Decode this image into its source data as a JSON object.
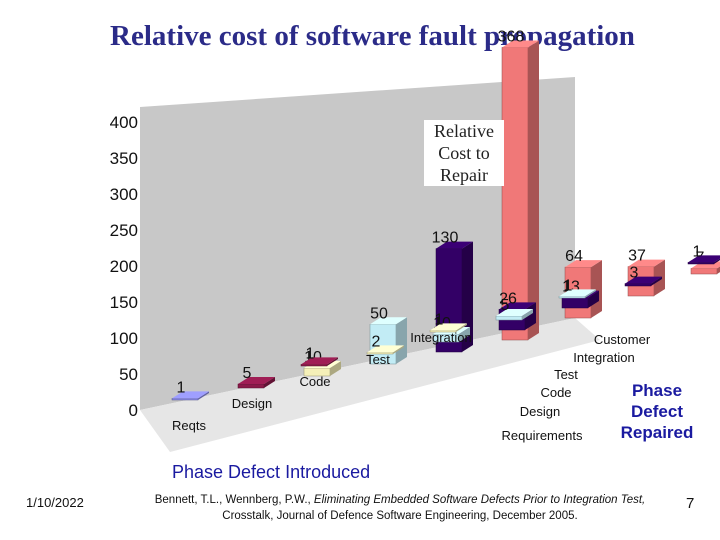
{
  "slide": {
    "title": "Relative cost of software fault propagation",
    "date": "1/10/2022",
    "page_number": "7",
    "citation": {
      "prefix": "Bennett, T.L., Wennberg, P.W., ",
      "italic": "Eliminating Embedded Software Defects Prior to Integration Test,",
      "suffix": "Crosstalk, Journal of Defence Software Engineering, December 2005."
    }
  },
  "chart_data": {
    "type": "bar",
    "title": "Relative cost of software fault propagation",
    "annotation": "Relative\nCost to\nRepair",
    "xlabel": "Phase Defect Introduced",
    "zlabel": "Phase\nDefect\nRepaired",
    "ylim": [
      0,
      400
    ],
    "yticks": [
      0,
      50,
      100,
      150,
      200,
      250,
      300,
      350,
      400
    ],
    "x_categories": [
      "Reqts",
      "Design",
      "Code",
      "Test",
      "Integration"
    ],
    "depth_categories": [
      "Requirements",
      "Design",
      "Code",
      "Test",
      "Integration",
      "Customer"
    ],
    "grid": false,
    "series": [
      {
        "repaired": "Requirements",
        "color": "#8a8ae6",
        "values": [
          1
        ]
      },
      {
        "repaired": "Design",
        "color": "#8b1a4a",
        "values": [
          5,
          1
        ]
      },
      {
        "repaired": "Code",
        "color": "#f5f0b8",
        "values": [
          10,
          2,
          1
        ]
      },
      {
        "repaired": "Test",
        "color": "#c2ecf5",
        "values": [
          50,
          10,
          5,
          1
        ]
      },
      {
        "repaired": "Integration",
        "color": "#330066",
        "values": [
          130,
          26,
          13,
          3,
          1
        ]
      },
      {
        "repaired": "Customer",
        "color": "#f07878",
        "values": [
          368,
          64,
          37,
          7,
          3
        ]
      }
    ]
  }
}
